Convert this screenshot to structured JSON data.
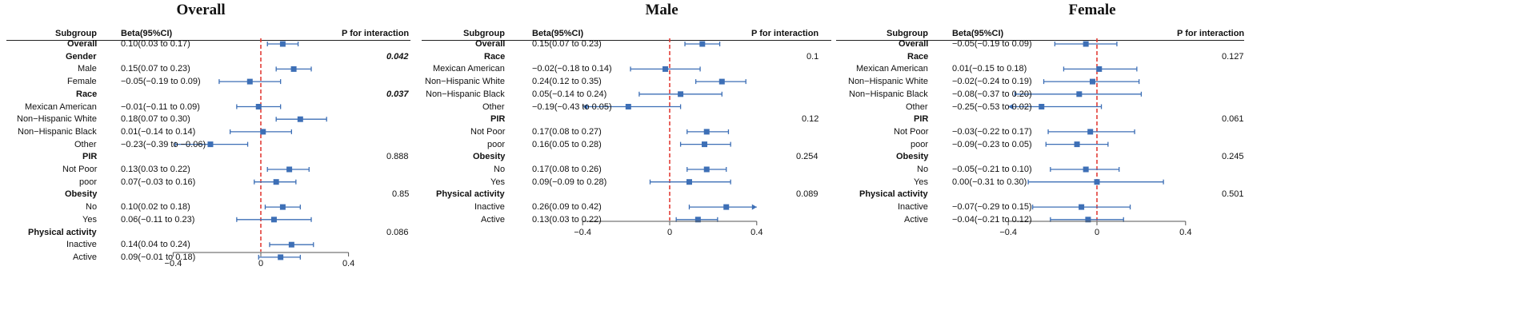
{
  "headers": {
    "subgroup": "Subgroup",
    "beta": "Beta(95%CI)",
    "p": "P for interaction"
  },
  "colors": {
    "ci": "#3d6fb6",
    "point": "#3d6fb6",
    "ref": "#e0302a",
    "axis": "#555555"
  },
  "chart_data": [
    {
      "type": "forest",
      "title": "Overall",
      "xlim": [
        -0.4,
        0.4
      ],
      "xticks": [
        "−0.4",
        "0",
        "0.4"
      ],
      "xtick_values": [
        -0.4,
        0,
        0.4
      ],
      "ref_line": 0,
      "rows": [
        {
          "label": "Overall",
          "bold": true,
          "beta": "0.10(0.03 to 0.17)",
          "est": 0.1,
          "lo": 0.03,
          "hi": 0.17,
          "p": ""
        },
        {
          "label": "Gender",
          "bold": true,
          "beta": "",
          "p": "0.042",
          "p_style": "bold-italic"
        },
        {
          "label": "Male",
          "beta": "0.15(0.07 to 0.23)",
          "est": 0.15,
          "lo": 0.07,
          "hi": 0.23,
          "p": ""
        },
        {
          "label": "Female",
          "beta": "−0.05(−0.19 to 0.09)",
          "est": -0.05,
          "lo": -0.19,
          "hi": 0.09,
          "p": ""
        },
        {
          "label": "Race",
          "bold": true,
          "beta": "",
          "p": "0.037",
          "p_style": "bold-italic"
        },
        {
          "label": "Mexican American",
          "beta": "−0.01(−0.11 to 0.09)",
          "est": -0.01,
          "lo": -0.11,
          "hi": 0.09,
          "p": ""
        },
        {
          "label": "Non−Hispanic White",
          "beta": "0.18(0.07 to 0.30)",
          "est": 0.18,
          "lo": 0.07,
          "hi": 0.3,
          "p": ""
        },
        {
          "label": "Non−Hispanic Black",
          "beta": "0.01(−0.14 to 0.14)",
          "est": 0.01,
          "lo": -0.14,
          "hi": 0.14,
          "p": ""
        },
        {
          "label": "Other",
          "beta": "−0.23(−0.39 to −0.06)",
          "est": -0.23,
          "lo": -0.39,
          "hi": -0.06,
          "p": ""
        },
        {
          "label": "PIR",
          "bold": true,
          "beta": "",
          "p": "0.888"
        },
        {
          "label": "Not Poor",
          "beta": "0.13(0.03 to 0.22)",
          "est": 0.13,
          "lo": 0.03,
          "hi": 0.22,
          "p": ""
        },
        {
          "label": "poor",
          "beta": "0.07(−0.03 to 0.16)",
          "est": 0.07,
          "lo": -0.03,
          "hi": 0.16,
          "p": ""
        },
        {
          "label": "Obesity",
          "bold": true,
          "beta": "",
          "p": "0.85"
        },
        {
          "label": "No",
          "beta": "0.10(0.02 to 0.18)",
          "est": 0.1,
          "lo": 0.02,
          "hi": 0.18,
          "p": ""
        },
        {
          "label": "Yes",
          "beta": "0.06(−0.11 to 0.23)",
          "est": 0.06,
          "lo": -0.11,
          "hi": 0.23,
          "p": ""
        },
        {
          "label": "Physical activity",
          "bold": true,
          "beta": "",
          "p": "0.086"
        },
        {
          "label": "Inactive",
          "beta": "0.14(0.04 to 0.24)",
          "est": 0.14,
          "lo": 0.04,
          "hi": 0.24,
          "p": ""
        },
        {
          "label": "Active",
          "beta": "0.09(−0.01 to 0.18)",
          "est": 0.09,
          "lo": -0.01,
          "hi": 0.18,
          "p": ""
        }
      ]
    },
    {
      "type": "forest",
      "title": "Male",
      "xlim": [
        -0.4,
        0.4
      ],
      "xticks": [
        "−0.4",
        "0",
        "0.4"
      ],
      "xtick_values": [
        -0.4,
        0,
        0.4
      ],
      "ref_line": 0,
      "rows": [
        {
          "label": "Overall",
          "bold": true,
          "beta": "0.15(0.07 to 0.23)",
          "est": 0.15,
          "lo": 0.07,
          "hi": 0.23,
          "p": ""
        },
        {
          "label": "Race",
          "bold": true,
          "beta": "",
          "p": "0.1"
        },
        {
          "label": "Mexican American",
          "beta": "−0.02(−0.18 to 0.14)",
          "est": -0.02,
          "lo": -0.18,
          "hi": 0.14,
          "p": ""
        },
        {
          "label": "Non−Hispanic White",
          "beta": "0.24(0.12 to 0.35)",
          "est": 0.24,
          "lo": 0.12,
          "hi": 0.35,
          "p": ""
        },
        {
          "label": "Non−Hispanic Black",
          "beta": "0.05(−0.14 to 0.24)",
          "est": 0.05,
          "lo": -0.14,
          "hi": 0.24,
          "p": ""
        },
        {
          "label": "Other",
          "beta": "−0.19(−0.43 to 0.05)",
          "est": -0.19,
          "lo": -0.43,
          "hi": 0.05,
          "p": "",
          "arrow_left": true
        },
        {
          "label": "PIR",
          "bold": true,
          "beta": "",
          "p": "0.12"
        },
        {
          "label": "Not Poor",
          "beta": "0.17(0.08 to 0.27)",
          "est": 0.17,
          "lo": 0.08,
          "hi": 0.27,
          "p": ""
        },
        {
          "label": "poor",
          "beta": "0.16(0.05 to 0.28)",
          "est": 0.16,
          "lo": 0.05,
          "hi": 0.28,
          "p": ""
        },
        {
          "label": "Obesity",
          "bold": true,
          "beta": "",
          "p": "0.254"
        },
        {
          "label": "No",
          "beta": "0.17(0.08 to 0.26)",
          "est": 0.17,
          "lo": 0.08,
          "hi": 0.26,
          "p": ""
        },
        {
          "label": "Yes",
          "beta": "0.09(−0.09 to 0.28)",
          "est": 0.09,
          "lo": -0.09,
          "hi": 0.28,
          "p": ""
        },
        {
          "label": "Physical activity",
          "bold": true,
          "beta": "",
          "p": "0.089"
        },
        {
          "label": "Inactive",
          "beta": "0.26(0.09 to 0.42)",
          "est": 0.26,
          "lo": 0.09,
          "hi": 0.42,
          "p": "",
          "arrow_right": true
        },
        {
          "label": "Active",
          "beta": "0.13(0.03 to 0.22)",
          "est": 0.13,
          "lo": 0.03,
          "hi": 0.22,
          "p": ""
        }
      ]
    },
    {
      "type": "forest",
      "title": "Female",
      "xlim": [
        -0.4,
        0.4
      ],
      "xticks": [
        "−0.4",
        "0",
        "0.4"
      ],
      "xtick_values": [
        -0.4,
        0,
        0.4
      ],
      "ref_line": 0,
      "rows": [
        {
          "label": "Overall",
          "bold": true,
          "beta": "−0.05(−0.19 to 0.09)",
          "est": -0.05,
          "lo": -0.19,
          "hi": 0.09,
          "p": ""
        },
        {
          "label": "Race",
          "bold": true,
          "beta": "",
          "p": "0.127"
        },
        {
          "label": "Mexican American",
          "beta": "0.01(−0.15 to 0.18)",
          "est": 0.01,
          "lo": -0.15,
          "hi": 0.18,
          "p": ""
        },
        {
          "label": "Non−Hispanic White",
          "beta": "−0.02(−0.24 to 0.19)",
          "est": -0.02,
          "lo": -0.24,
          "hi": 0.19,
          "p": ""
        },
        {
          "label": "Non−Hispanic Black",
          "beta": "−0.08(−0.37 to 0.20)",
          "est": -0.08,
          "lo": -0.37,
          "hi": 0.2,
          "p": ""
        },
        {
          "label": "Other",
          "beta": "−0.25(−0.53 to 0.02)",
          "est": -0.25,
          "lo": -0.53,
          "hi": 0.02,
          "p": "",
          "arrow_left": true
        },
        {
          "label": "PIR",
          "bold": true,
          "beta": "",
          "p": "0.061"
        },
        {
          "label": "Not Poor",
          "beta": "−0.03(−0.22 to 0.17)",
          "est": -0.03,
          "lo": -0.22,
          "hi": 0.17,
          "p": ""
        },
        {
          "label": "poor",
          "beta": "−0.09(−0.23 to 0.05)",
          "est": -0.09,
          "lo": -0.23,
          "hi": 0.05,
          "p": ""
        },
        {
          "label": "Obesity",
          "bold": true,
          "beta": "",
          "p": "0.245"
        },
        {
          "label": "No",
          "beta": "−0.05(−0.21 to 0.10)",
          "est": -0.05,
          "lo": -0.21,
          "hi": 0.1,
          "p": ""
        },
        {
          "label": "Yes",
          "beta": "0.00(−0.31 to 0.30)",
          "est": 0.0,
          "lo": -0.31,
          "hi": 0.3,
          "p": ""
        },
        {
          "label": "Physical activity",
          "bold": true,
          "beta": "",
          "p": "0.501"
        },
        {
          "label": "Inactive",
          "beta": "−0.07(−0.29 to 0.15)",
          "est": -0.07,
          "lo": -0.29,
          "hi": 0.15,
          "p": ""
        },
        {
          "label": "Active",
          "beta": "−0.04(−0.21 to 0.12)",
          "est": -0.04,
          "lo": -0.21,
          "hi": 0.12,
          "p": ""
        }
      ]
    }
  ]
}
